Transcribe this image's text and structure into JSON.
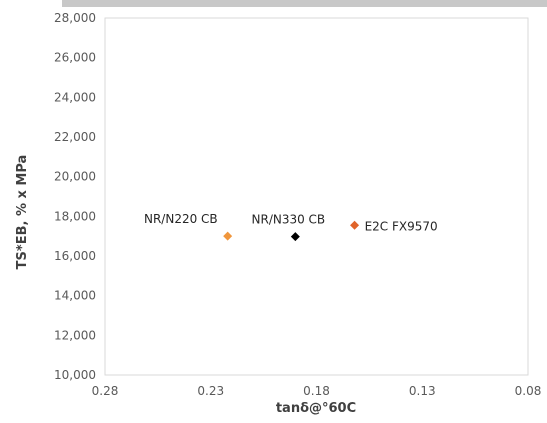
{
  "chart_data": {
    "type": "scatter",
    "title": "",
    "xlabel": "tanδ@°60C",
    "ylabel": "TS*EB, % x MPa",
    "xlim": [
      0.28,
      0.08
    ],
    "x_reversed": true,
    "ylim": [
      10000,
      28000
    ],
    "x_ticks": [
      0.28,
      0.23,
      0.18,
      0.13,
      0.08
    ],
    "x_tick_labels": [
      "0.28",
      "0.23",
      "0.18",
      "0.13",
      "0.08"
    ],
    "y_ticks": [
      10000,
      12000,
      14000,
      16000,
      18000,
      20000,
      22000,
      24000,
      26000,
      28000
    ],
    "y_tick_labels": [
      "10,000",
      "12,000",
      "14,000",
      "16,000",
      "18,000",
      "20,000",
      "22,000",
      "24,000",
      "26,000",
      "28,000"
    ],
    "grid": false,
    "legend": "none",
    "points": [
      {
        "label": "NR/N220 CB",
        "x": 0.222,
        "y": 17000,
        "color": "#f0963c",
        "marker": "diamond",
        "label_side": "left"
      },
      {
        "label": "NR/N330 CB",
        "x": 0.19,
        "y": 16980,
        "color": "#000000",
        "marker": "diamond",
        "label_side": "top"
      },
      {
        "label": "E2C FX9570",
        "x": 0.162,
        "y": 17550,
        "color": "#e0642a",
        "marker": "diamond",
        "label_side": "right"
      }
    ]
  }
}
